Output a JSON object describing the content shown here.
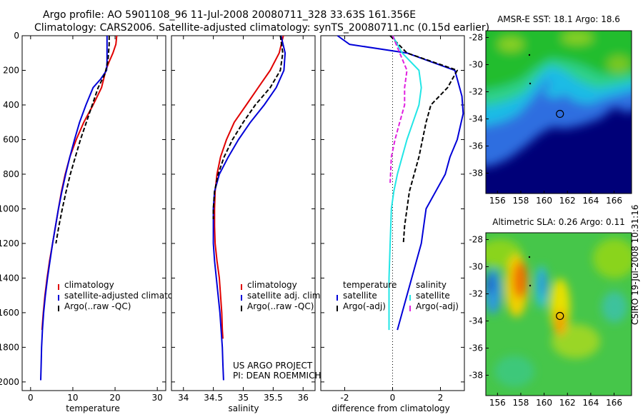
{
  "title": {
    "line1": "Argo profile: AO 5901108_96 11-Jul-2008 20080711_328 33.63S 161.356E",
    "line2": "Climatology: CARS2006. Satellite-adjusted climatology: synTS_20080711.nc (0.15d earlier)"
  },
  "credit": {
    "line1": "US ARGO PROJECT",
    "line2": "PI: DEAN ROEMMICH"
  },
  "side_stamp": "CSIRO 19-Jul-2008 10:31:16",
  "colors": {
    "red": "#e00000",
    "blue": "#0000d8",
    "black": "#000000",
    "cyan": "#22e6e6",
    "magenta": "#e020e0"
  },
  "chart_data": [
    {
      "type": "line",
      "xlabel": "temperature",
      "xlim": [
        -2,
        32
      ],
      "xticks": [
        0,
        10,
        20,
        30
      ],
      "ylim": [
        2050,
        0
      ],
      "yticks": [
        0,
        200,
        400,
        600,
        800,
        1000,
        1200,
        1400,
        1600,
        1800,
        2000
      ],
      "legend": {
        "position": "lower-left",
        "entries": [
          "climatology",
          "satellite-adjusted climatology",
          "Argo(..raw -QC)"
        ]
      },
      "series": [
        {
          "name": "climatology",
          "color": "red",
          "dash": "solid",
          "x": [
            20.4,
            20.2,
            19.5,
            18.6,
            17.8,
            16.8,
            14.8,
            12.6,
            10.8,
            9.3,
            8.2,
            7.3,
            6.6,
            5.9,
            5.2,
            4.5,
            3.9,
            3.4,
            3.0,
            2.7
          ],
          "y": [
            0,
            50,
            100,
            150,
            200,
            300,
            400,
            500,
            600,
            700,
            800,
            900,
            1000,
            1100,
            1200,
            1300,
            1400,
            1500,
            1600,
            1700
          ]
        },
        {
          "name": "satellite-adjusted climatology",
          "color": "blue",
          "dash": "solid",
          "x": [
            18.1,
            18.1,
            18.1,
            18.1,
            18.0,
            16.6,
            14.8,
            13.1,
            11.6,
            10.4,
            9.3,
            8.3,
            7.4,
            6.6,
            5.9,
            5.2,
            4.6,
            4.0,
            3.5,
            3.1,
            2.8,
            2.6,
            2.5,
            2.4
          ],
          "y": [
            0,
            50,
            100,
            150,
            200,
            250,
            300,
            400,
            500,
            600,
            700,
            800,
            900,
            1000,
            1100,
            1200,
            1300,
            1400,
            1500,
            1600,
            1700,
            1800,
            1900,
            1990
          ]
        },
        {
          "name": "Argo(..raw -QC)",
          "color": "black",
          "dash": "dashed",
          "x": [
            18.6,
            18.6,
            18.3,
            17.6,
            16.0,
            14.6,
            13.2,
            11.8,
            10.6,
            9.4,
            8.4,
            7.5,
            6.7,
            6.0
          ],
          "y": [
            0,
            50,
            150,
            220,
            300,
            400,
            500,
            600,
            700,
            800,
            900,
            1000,
            1100,
            1200
          ]
        }
      ]
    },
    {
      "type": "line",
      "xlabel": "salinity",
      "xlim": [
        33.8,
        36.2
      ],
      "xticks": [
        34,
        34.5,
        35,
        35.5,
        36
      ],
      "ylim": [
        2050,
        0
      ],
      "legend": {
        "position": "lower-left",
        "entries": [
          "climatology",
          "satellite adj. clim.",
          "Argo(..raw -QC)"
        ]
      },
      "series": [
        {
          "name": "climatology",
          "color": "red",
          "dash": "solid",
          "x": [
            35.67,
            35.6,
            35.45,
            35.25,
            35.05,
            34.85,
            34.72,
            34.62,
            34.56,
            34.53,
            34.52,
            34.52,
            34.53,
            34.56,
            34.6,
            34.62,
            34.64,
            34.65,
            34.66
          ],
          "y": [
            0,
            100,
            200,
            300,
            400,
            500,
            600,
            700,
            800,
            900,
            1000,
            1100,
            1200,
            1300,
            1400,
            1500,
            1600,
            1700,
            1750
          ]
        },
        {
          "name": "satellite adj. clim.",
          "color": "blue",
          "dash": "solid",
          "x": [
            35.63,
            35.7,
            35.68,
            35.55,
            35.35,
            35.12,
            34.92,
            34.75,
            34.6,
            34.52,
            34.5,
            34.5,
            34.5,
            34.52,
            34.55,
            34.58,
            34.61,
            34.63,
            34.65,
            34.66,
            34.67
          ],
          "y": [
            0,
            100,
            200,
            300,
            400,
            500,
            600,
            700,
            800,
            900,
            1000,
            1100,
            1200,
            1300,
            1400,
            1500,
            1600,
            1700,
            1800,
            1900,
            1990
          ]
        },
        {
          "name": "Argo(..raw -QC)",
          "color": "black",
          "dash": "dashed",
          "x": [
            35.62,
            35.66,
            35.62,
            35.45,
            35.2,
            35.0,
            34.82,
            34.68,
            34.58,
            34.52,
            34.5,
            34.5
          ],
          "y": [
            0,
            100,
            200,
            300,
            400,
            500,
            600,
            700,
            800,
            900,
            1000,
            1060
          ]
        }
      ]
    },
    {
      "type": "line",
      "xlabel": "difference from climatology",
      "xlim": [
        -3,
        3
      ],
      "xticks": [
        -2,
        0,
        2
      ],
      "ylim": [
        2050,
        0
      ],
      "legend": {
        "position": "lower-left",
        "entries": [
          "temperature",
          "satellite",
          "Argo(-adj)",
          "salinity",
          "satellite",
          "Argo(-adj)"
        ]
      },
      "series": [
        {
          "name": "satellite",
          "color": "blue",
          "dash": "solid",
          "x": [
            -2.3,
            -1.8,
            0.6,
            1.6,
            2.6,
            2.7,
            2.8,
            2.9,
            2.95,
            2.7,
            2.4,
            2.2,
            1.8,
            1.4,
            1.2,
            0.8,
            0.4,
            0.2
          ],
          "y": [
            0,
            50,
            100,
            150,
            200,
            250,
            300,
            350,
            450,
            600,
            700,
            800,
            900,
            1000,
            1200,
            1400,
            1600,
            1700
          ]
        },
        {
          "name": "Argo(-adj)",
          "color": "black",
          "dash": "dashed",
          "x": [
            -0.1,
            0.6,
            2.7,
            2.3,
            1.6,
            1.4,
            1.1,
            0.7,
            0.5,
            0.45
          ],
          "y": [
            0,
            100,
            200,
            300,
            400,
            500,
            700,
            900,
            1100,
            1200
          ]
        },
        {
          "name": "satellite",
          "color": "cyan",
          "dash": "solid",
          "x": [
            0.0,
            0.4,
            1.1,
            1.2,
            1.1,
            0.85,
            0.6,
            0.4,
            0.2,
            0.05,
            -0.05,
            -0.1,
            -0.15,
            -0.15
          ],
          "y": [
            0,
            100,
            200,
            300,
            400,
            500,
            600,
            700,
            800,
            900,
            1000,
            1200,
            1400,
            1700
          ]
        },
        {
          "name": "Argo(-adj)",
          "color": "magenta",
          "dash": "dashed",
          "x": [
            0.0,
            0.3,
            0.6,
            0.5,
            0.5,
            0.3,
            0.1,
            -0.05,
            -0.1
          ],
          "y": [
            0,
            100,
            200,
            300,
            400,
            500,
            600,
            700,
            850
          ]
        }
      ]
    },
    {
      "type": "heatmap",
      "title": "AMSR-E SST: 18.1 Argo: 18.6",
      "xlim": [
        155,
        167.5
      ],
      "xticks": [
        156,
        158,
        160,
        162,
        164,
        166
      ],
      "ylim": [
        -39.5,
        -27.5
      ],
      "yticks": [
        -28,
        -30,
        -32,
        -34,
        -36,
        -38
      ],
      "marker": {
        "lon": 161.356,
        "lat": -33.63
      }
    },
    {
      "type": "heatmap",
      "title": "Altimetric SLA: 0.26 Argo: 0.11",
      "xlim": [
        155,
        167.5
      ],
      "xticks": [
        156,
        158,
        160,
        162,
        164,
        166
      ],
      "ylim": [
        -39.5,
        -27.5
      ],
      "yticks": [
        -28,
        -30,
        -32,
        -34,
        -36,
        -38
      ],
      "marker": {
        "lon": 161.356,
        "lat": -33.63
      }
    }
  ]
}
